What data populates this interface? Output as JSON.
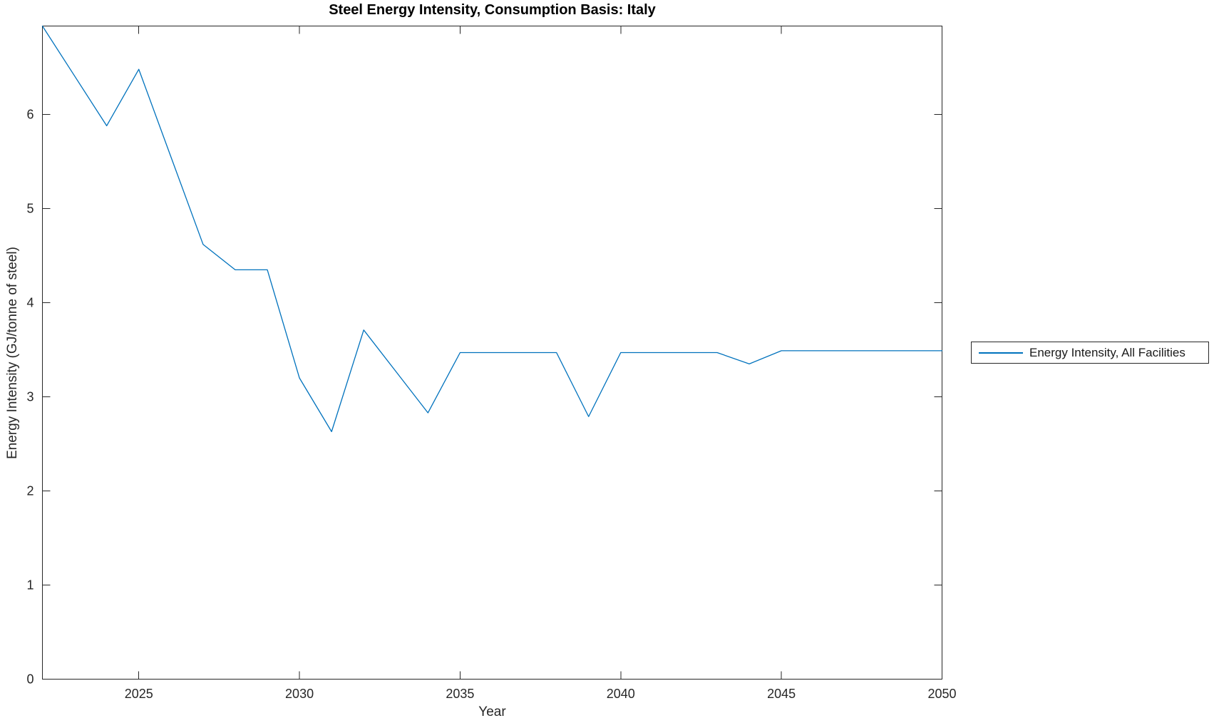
{
  "chart_data": {
    "type": "line",
    "title": "Steel Energy Intensity, Consumption Basis: Italy",
    "xlabel": "Year",
    "ylabel": "Energy Intensity (GJ/tonne of steel)",
    "xlim": [
      2022,
      2050
    ],
    "ylim": [
      0,
      6.94
    ],
    "grid": false,
    "x_ticks": {
      "values": [
        2025,
        2030,
        2035,
        2040,
        2045,
        2050
      ],
      "labels": [
        "2025",
        "2030",
        "2035",
        "2040",
        "2045",
        "2050"
      ]
    },
    "y_ticks": {
      "values": [
        0,
        1,
        2,
        3,
        4,
        5,
        6
      ],
      "labels": [
        "0",
        "1",
        "2",
        "3",
        "4",
        "5",
        "6"
      ]
    },
    "legend": {
      "position": "outside-right",
      "entries": [
        {
          "label": "Energy Intensity, All Facilities",
          "color": "#0072BD"
        }
      ]
    },
    "series": [
      {
        "name": "Energy Intensity, All Facilities",
        "color": "#0072BD",
        "x": [
          2022,
          2023,
          2024,
          2025,
          2026,
          2027,
          2028,
          2029,
          2030,
          2031,
          2032,
          2033,
          2034,
          2035,
          2036,
          2037,
          2038,
          2039,
          2040,
          2041,
          2042,
          2043,
          2044,
          2045,
          2046,
          2047,
          2048,
          2049,
          2050
        ],
        "y": [
          6.94,
          6.41,
          5.88,
          6.48,
          5.55,
          4.62,
          4.35,
          4.35,
          3.2,
          2.63,
          3.71,
          3.27,
          2.83,
          3.47,
          3.47,
          3.47,
          3.47,
          2.79,
          3.47,
          3.47,
          3.47,
          3.47,
          3.35,
          3.49,
          3.49,
          3.49,
          3.49,
          3.49,
          3.49
        ]
      }
    ],
    "colors": {
      "axis": "#262626",
      "title": "#000000",
      "line": "#0072BD",
      "background": "#ffffff"
    }
  }
}
